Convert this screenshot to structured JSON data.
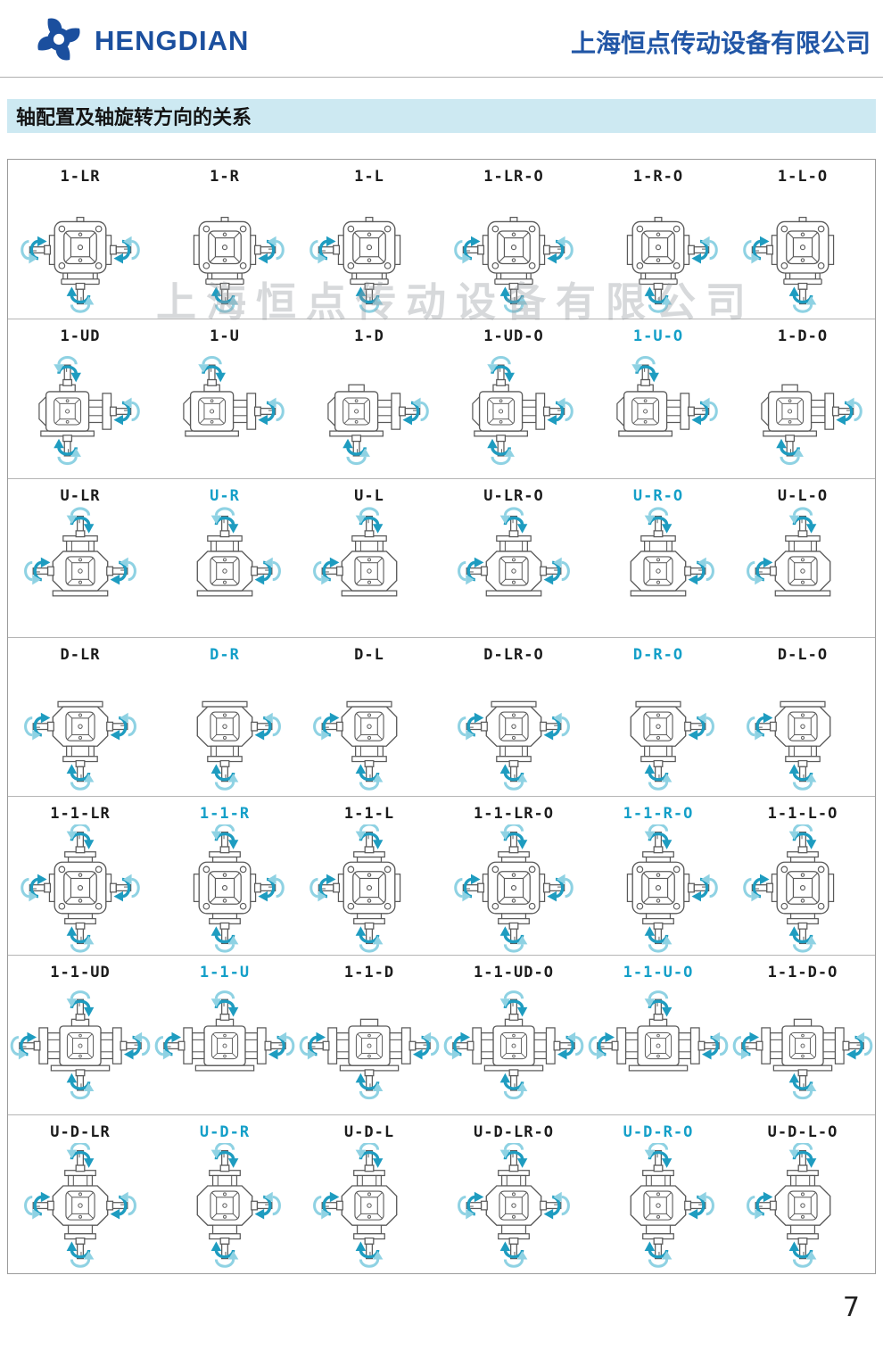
{
  "header": {
    "brand": "HENGDIAN",
    "company_cn": "上海恒点传动设备有限公司",
    "logo_icon": "pinwheel-logo-icon"
  },
  "section_title": "轴配置及轴旋转方向的关系",
  "watermark": "上海恒点传动设备有限公司",
  "page_number": "7",
  "colors": {
    "brand_blue": "#1b4f9e",
    "accent_cyan": "#149fc8",
    "title_bar_bg": "#cde9f2",
    "arrow_dark": "#1e9cc0",
    "arrow_light": "#8fd2e3",
    "drawing_line": "#5a5a5a"
  },
  "table": {
    "rows": [
      {
        "view": "front",
        "cells": [
          {
            "label": "1-LR",
            "highlight": false,
            "shafts": [
              "left",
              "right",
              "down"
            ]
          },
          {
            "label": "1-R",
            "highlight": false,
            "shafts": [
              "right",
              "down"
            ]
          },
          {
            "label": "1-L",
            "highlight": false,
            "shafts": [
              "left",
              "down"
            ]
          },
          {
            "label": "1-LR-O",
            "highlight": false,
            "shafts": [
              "left",
              "right",
              "down"
            ]
          },
          {
            "label": "1-R-O",
            "highlight": false,
            "shafts": [
              "right",
              "down"
            ]
          },
          {
            "label": "1-L-O",
            "highlight": false,
            "shafts": [
              "left",
              "down"
            ]
          }
        ]
      },
      {
        "view": "side",
        "cells": [
          {
            "label": "1-UD",
            "highlight": false,
            "shafts": [
              "up",
              "down",
              "right"
            ]
          },
          {
            "label": "1-U",
            "highlight": false,
            "shafts": [
              "up",
              "right"
            ]
          },
          {
            "label": "1-D",
            "highlight": false,
            "shafts": [
              "down",
              "right"
            ]
          },
          {
            "label": "1-UD-O",
            "highlight": false,
            "shafts": [
              "up",
              "down",
              "right"
            ]
          },
          {
            "label": "1-U-O",
            "highlight": true,
            "shafts": [
              "up",
              "right"
            ]
          },
          {
            "label": "1-D-O",
            "highlight": false,
            "shafts": [
              "down",
              "right"
            ]
          }
        ]
      },
      {
        "view": "vert-up",
        "cells": [
          {
            "label": "U-LR",
            "highlight": false,
            "shafts": [
              "up",
              "left",
              "right"
            ]
          },
          {
            "label": "U-R",
            "highlight": true,
            "shafts": [
              "up",
              "right"
            ]
          },
          {
            "label": "U-L",
            "highlight": false,
            "shafts": [
              "up",
              "left"
            ]
          },
          {
            "label": "U-LR-O",
            "highlight": false,
            "shafts": [
              "up",
              "left",
              "right"
            ]
          },
          {
            "label": "U-R-O",
            "highlight": true,
            "shafts": [
              "up",
              "right"
            ]
          },
          {
            "label": "U-L-O",
            "highlight": false,
            "shafts": [
              "up",
              "left"
            ]
          }
        ]
      },
      {
        "view": "vert-down",
        "cells": [
          {
            "label": "D-LR",
            "highlight": false,
            "shafts": [
              "down",
              "left",
              "right"
            ]
          },
          {
            "label": "D-R",
            "highlight": true,
            "shafts": [
              "down",
              "right"
            ]
          },
          {
            "label": "D-L",
            "highlight": false,
            "shafts": [
              "down",
              "left"
            ]
          },
          {
            "label": "D-LR-O",
            "highlight": false,
            "shafts": [
              "down",
              "left",
              "right"
            ]
          },
          {
            "label": "D-R-O",
            "highlight": true,
            "shafts": [
              "down",
              "right"
            ]
          },
          {
            "label": "D-L-O",
            "highlight": false,
            "shafts": [
              "down",
              "left"
            ]
          }
        ]
      },
      {
        "view": "front4",
        "cells": [
          {
            "label": "1-1-LR",
            "highlight": false,
            "shafts": [
              "up",
              "down",
              "left",
              "right"
            ]
          },
          {
            "label": "1-1-R",
            "highlight": true,
            "shafts": [
              "up",
              "down",
              "right"
            ]
          },
          {
            "label": "1-1-L",
            "highlight": false,
            "shafts": [
              "up",
              "down",
              "left"
            ]
          },
          {
            "label": "1-1-LR-O",
            "highlight": false,
            "shafts": [
              "up",
              "down",
              "left",
              "right"
            ]
          },
          {
            "label": "1-1-R-O",
            "highlight": true,
            "shafts": [
              "up",
              "down",
              "right"
            ]
          },
          {
            "label": "1-1-L-O",
            "highlight": false,
            "shafts": [
              "up",
              "down",
              "left"
            ]
          }
        ]
      },
      {
        "view": "side4",
        "cells": [
          {
            "label": "1-1-UD",
            "highlight": false,
            "shafts": [
              "left",
              "right",
              "up",
              "down"
            ]
          },
          {
            "label": "1-1-U",
            "highlight": true,
            "shafts": [
              "left",
              "right",
              "up"
            ]
          },
          {
            "label": "1-1-D",
            "highlight": false,
            "shafts": [
              "left",
              "right",
              "down"
            ]
          },
          {
            "label": "1-1-UD-O",
            "highlight": false,
            "shafts": [
              "left",
              "right",
              "up",
              "down"
            ]
          },
          {
            "label": "1-1-U-O",
            "highlight": true,
            "shafts": [
              "left",
              "right",
              "up"
            ]
          },
          {
            "label": "1-1-D-O",
            "highlight": false,
            "shafts": [
              "left",
              "right",
              "down"
            ]
          }
        ]
      },
      {
        "view": "vert4",
        "cells": [
          {
            "label": "U-D-LR",
            "highlight": false,
            "shafts": [
              "up",
              "down",
              "left",
              "right"
            ]
          },
          {
            "label": "U-D-R",
            "highlight": true,
            "shafts": [
              "up",
              "down",
              "right"
            ]
          },
          {
            "label": "U-D-L",
            "highlight": false,
            "shafts": [
              "up",
              "down",
              "left"
            ]
          },
          {
            "label": "U-D-LR-O",
            "highlight": false,
            "shafts": [
              "up",
              "down",
              "left",
              "right"
            ]
          },
          {
            "label": "U-D-R-O",
            "highlight": true,
            "shafts": [
              "up",
              "down",
              "right"
            ]
          },
          {
            "label": "U-D-L-O",
            "highlight": false,
            "shafts": [
              "up",
              "down",
              "left"
            ]
          }
        ]
      }
    ]
  }
}
